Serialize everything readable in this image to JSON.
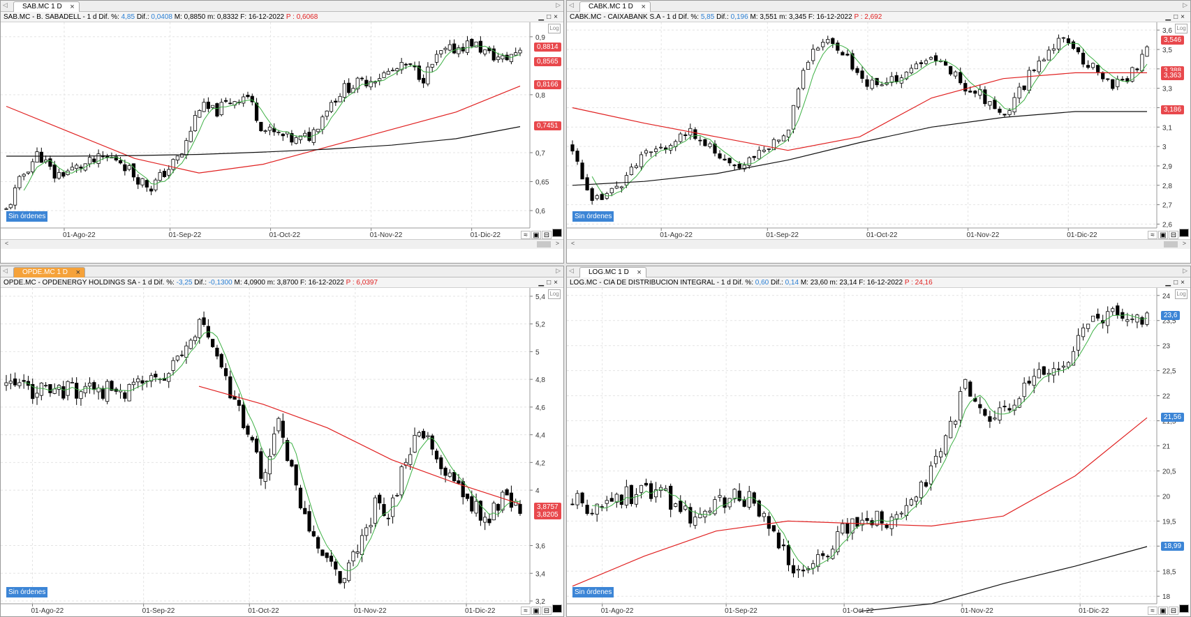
{
  "panels": [
    {
      "id": "sab",
      "tab": "SAB.MC 1 D",
      "tab_style": "normal",
      "title": {
        "pre": "SAB.MC - B. SABADELL -  1 d  Dif. %: ",
        "pct": "4,85",
        "mid": "  Dif.: ",
        "dif": "0,0408",
        "post": "  M: 0,8850  m: 0,8332  F: 16-12-2022  ",
        "p": "P : 0,6068"
      },
      "sin_ordenes": "Sin órdenes",
      "log_label": "Log",
      "y_ticks": [
        "0,9",
        "0,8",
        "0,7",
        "0,65",
        "0,6"
      ],
      "y_tick_values": [
        0.9,
        0.8,
        0.7,
        0.65,
        0.6
      ],
      "y_range": [
        0.57,
        0.925
      ],
      "x_ticks": [
        "01-Ago-22",
        "01-Sep-22",
        "01-Oct-22",
        "01-Nov-22",
        "01-Dic-22"
      ],
      "x_tick_pos": [
        0.12,
        0.32,
        0.51,
        0.7,
        0.89
      ],
      "badges": [
        {
          "label": "0,8814",
          "value": 0.8814,
          "color": "#e8484c"
        },
        {
          "label": "0,8565",
          "value": 0.8565,
          "color": "#e8484c"
        },
        {
          "label": "0,8166",
          "value": 0.8166,
          "color": "#e8484c"
        },
        {
          "label": "0,7451",
          "value": 0.7451,
          "color": "#e8484c"
        }
      ],
      "seed": 11,
      "price_path": [
        0.6,
        0.66,
        0.7,
        0.66,
        0.67,
        0.68,
        0.69,
        0.69,
        0.66,
        0.64,
        0.67,
        0.7,
        0.78,
        0.77,
        0.79,
        0.8,
        0.74,
        0.73,
        0.72,
        0.73,
        0.78,
        0.81,
        0.82,
        0.83,
        0.84,
        0.85,
        0.83,
        0.87,
        0.88,
        0.89,
        0.87,
        0.86,
        0.88
      ],
      "ma_black": [
        0.694,
        0.694,
        0.695,
        0.697,
        0.701,
        0.706,
        0.713,
        0.724,
        0.745
      ],
      "ma_red": [
        0.78,
        0.735,
        0.69,
        0.665,
        0.68,
        0.71,
        0.74,
        0.77,
        0.815
      ],
      "scrollbar": true
    },
    {
      "id": "cabk",
      "tab": "CABK.MC 1 D",
      "tab_style": "normal",
      "title": {
        "pre": "CABK.MC - CAIXABANK S.A -  1 d  Dif. %: ",
        "pct": "5,85",
        "mid": "  Dif.: ",
        "dif": "0,196",
        "post": "  M: 3,551  m: 3,345  F: 16-12-2022  ",
        "p": "P : 2,692"
      },
      "sin_ordenes": "Sin órdenes",
      "log_label": "Log",
      "y_ticks": [
        "3,6",
        "3,5",
        "3,4",
        "3,3",
        "3,2",
        "3,1",
        "3",
        "2,9",
        "2,8",
        "2,7",
        "2,6"
      ],
      "y_tick_values": [
        3.6,
        3.5,
        3.4,
        3.3,
        3.2,
        3.1,
        3.0,
        2.9,
        2.8,
        2.7,
        2.6
      ],
      "y_range": [
        2.58,
        3.64
      ],
      "x_ticks": [
        "01-Ago-22",
        "01-Sep-22",
        "01-Oct-22",
        "01-Nov-22",
        "01-Dic-22"
      ],
      "x_tick_pos": [
        0.16,
        0.34,
        0.51,
        0.68,
        0.85
      ],
      "badges": [
        {
          "label": "3,546",
          "value": 3.546,
          "color": "#e8484c"
        },
        {
          "label": "3,388",
          "value": 3.388,
          "color": "#e8484c"
        },
        {
          "label": "3,363",
          "value": 3.363,
          "color": "#e8484c"
        },
        {
          "label": "3,186",
          "value": 3.186,
          "color": "#e8484c"
        }
      ],
      "seed": 23,
      "price_path": [
        3.0,
        2.7,
        2.75,
        2.85,
        2.95,
        3.0,
        3.05,
        3.07,
        2.95,
        2.88,
        2.95,
        3.0,
        3.1,
        3.45,
        3.55,
        3.5,
        3.35,
        3.3,
        3.35,
        3.4,
        3.45,
        3.4,
        3.3,
        3.25,
        3.15,
        3.3,
        3.45,
        3.55,
        3.5,
        3.4,
        3.32,
        3.35,
        3.5
      ],
      "ma_black": [
        2.8,
        2.82,
        2.86,
        2.93,
        3.02,
        3.1,
        3.15,
        3.18,
        3.18
      ],
      "ma_red": [
        3.2,
        3.12,
        3.05,
        2.98,
        3.05,
        3.25,
        3.35,
        3.38,
        3.38
      ],
      "scrollbar": true
    },
    {
      "id": "opde",
      "tab": "OPDE.MC 1 D",
      "tab_style": "orange",
      "title": {
        "pre": "OPDE.MC - OPDENERGY HOLDINGS SA -  1 d  Dif. %: ",
        "pct": "-3,25",
        "mid": "  Dif.: ",
        "dif": "-0,1300",
        "post": "  M: 4,0900  m: 3,8700  F: 16-12-2022  ",
        "p": "P : 6,0397"
      },
      "sin_ordenes": "Sin órdenes",
      "log_label": "Log",
      "y_ticks": [
        "5,4",
        "5,2",
        "5",
        "4,8",
        "4,6",
        "4,4",
        "4,2",
        "4",
        "3,6",
        "3,4",
        "3,2"
      ],
      "y_tick_values": [
        5.4,
        5.2,
        5.0,
        4.8,
        4.6,
        4.4,
        4.2,
        4.0,
        3.6,
        3.4,
        3.2
      ],
      "y_range": [
        3.18,
        5.46
      ],
      "x_ticks": [
        "01-Ago-22",
        "01-Sep-22",
        "01-Oct-22",
        "01-Nov-22",
        "01-Dic-22"
      ],
      "x_tick_pos": [
        0.06,
        0.27,
        0.47,
        0.67,
        0.88
      ],
      "badges": [
        {
          "label": "3,8757",
          "value": 3.8757,
          "color": "#e8484c"
        },
        {
          "label": "3,8205",
          "value": 3.8205,
          "color": "#e8484c"
        }
      ],
      "seed": 37,
      "price_path": [
        4.75,
        4.72,
        4.73,
        4.7,
        4.72,
        4.74,
        4.73,
        4.72,
        4.74,
        4.8,
        4.85,
        4.95,
        5.2,
        5.0,
        4.7,
        4.4,
        4.1,
        4.5,
        4.0,
        3.7,
        3.5,
        3.35,
        3.6,
        3.9,
        3.85,
        4.3,
        4.4,
        4.15,
        4.05,
        3.9,
        3.8,
        3.95,
        3.88
      ],
      "ma_black": [],
      "ma_red": [
        null,
        null,
        null,
        4.75,
        4.62,
        4.45,
        4.22,
        4.05,
        3.9
      ],
      "scrollbar": false
    },
    {
      "id": "log",
      "tab": "LOG.MC 1 D",
      "tab_style": "normal",
      "title": {
        "pre": "LOG.MC - CIA DE DISTRIBUCION INTEGRAL -  1 d  Dif. %: ",
        "pct": "0,60",
        "mid": "  Dif.: ",
        "dif": "0,14",
        "post": "  M: 23,60  m: 23,14  F: 16-12-2022  ",
        "p": "P : 24,16"
      },
      "sin_ordenes": "Sin órdenes",
      "log_label": "Log",
      "y_ticks": [
        "24",
        "23,5",
        "23",
        "22,5",
        "22",
        "21,5",
        "21",
        "20,5",
        "20",
        "19,5",
        "19",
        "18,5",
        "18"
      ],
      "y_tick_values": [
        24,
        23.5,
        23,
        22.5,
        22,
        21.5,
        21,
        20.5,
        20,
        19.5,
        19,
        18.5,
        18
      ],
      "y_range": [
        17.85,
        24.15
      ],
      "x_ticks": [
        "01-Ago-22",
        "01-Sep-22",
        "01-Oct-22",
        "01-Nov-22",
        "01-Dic-22"
      ],
      "x_tick_pos": [
        0.06,
        0.27,
        0.47,
        0.67,
        0.87
      ],
      "badges": [
        {
          "label": "23,6",
          "value": 23.6,
          "color": "#3c85d6"
        },
        {
          "label": "21,56",
          "value": 21.56,
          "color": "#3c85d6"
        },
        {
          "label": "18,99",
          "value": 18.99,
          "color": "#3c85d6"
        }
      ],
      "seed": 53,
      "price_path": [
        19.9,
        19.8,
        19.9,
        20.0,
        20.1,
        20.05,
        19.7,
        19.6,
        19.8,
        20.0,
        19.9,
        19.3,
        18.7,
        18.5,
        18.8,
        19.3,
        19.5,
        19.6,
        19.5,
        19.8,
        20.5,
        21.3,
        22.3,
        21.5,
        21.6,
        22.0,
        22.4,
        22.5,
        23.0,
        23.5,
        23.6,
        23.5,
        23.6
      ],
      "ma_black": [
        null,
        null,
        null,
        null,
        17.7,
        17.85,
        18.25,
        18.6,
        18.99
      ],
      "ma_red": [
        18.2,
        18.8,
        19.3,
        19.5,
        19.45,
        19.4,
        19.6,
        20.4,
        21.56
      ],
      "scrollbar": false
    }
  ]
}
